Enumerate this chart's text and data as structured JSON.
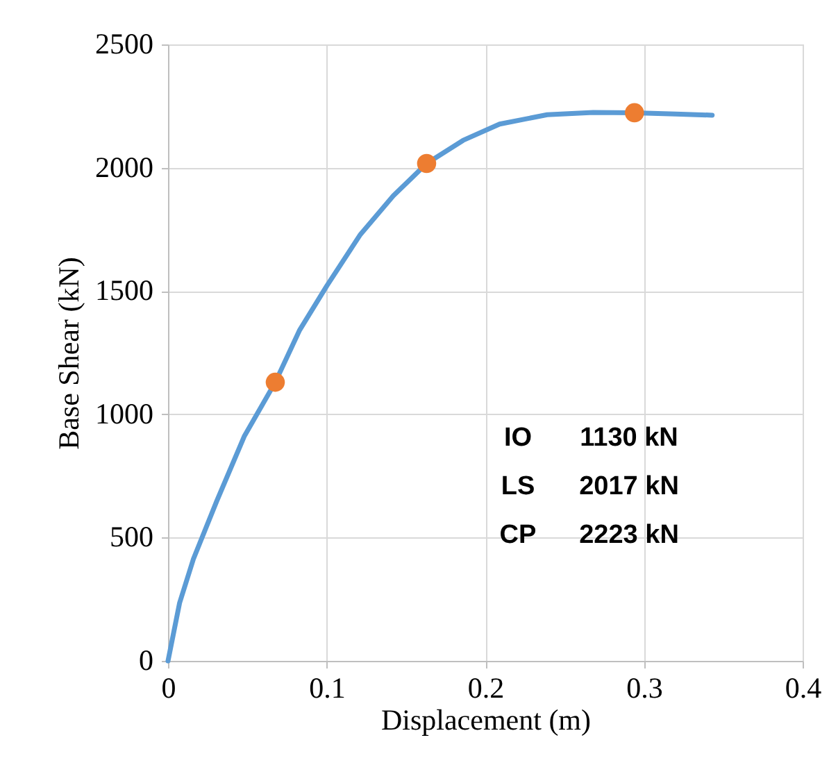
{
  "chart_data": {
    "type": "line",
    "xlabel": "Displacement (m)",
    "ylabel": "Base Shear (kN)",
    "xlim": [
      0,
      0.4
    ],
    "xticks": [
      0,
      0.1,
      0.2,
      0.3,
      0.4
    ],
    "ylim": [
      0,
      2500
    ],
    "yticks": [
      0,
      500,
      1000,
      1500,
      2000,
      2500
    ],
    "grid": true,
    "series": [
      {
        "color": "#5b9bd5",
        "line_style": "solid",
        "x": [
          0,
          0.0073,
          0.016,
          0.0307,
          0.048,
          0.0676,
          0.083,
          0.1,
          0.121,
          0.142,
          0.163,
          0.186,
          0.209,
          0.239,
          0.268,
          0.294,
          0.32,
          0.343
        ],
        "values": [
          0,
          235,
          413,
          648,
          910,
          1130,
          1342,
          1520,
          1727,
          1886,
          2017,
          2111,
          2177,
          2215,
          2224,
          2223,
          2218,
          2213
        ]
      },
      {
        "type": "scatter",
        "color": "#ed7d31",
        "marker": "circle",
        "x": [
          0.0676,
          0.163,
          0.294
        ],
        "values": [
          1130,
          2017,
          2223
        ]
      }
    ],
    "annotations": [
      "IO",
      "1130 kN",
      "LS",
      "2017 kN",
      "CP",
      "2223 kN"
    ]
  }
}
